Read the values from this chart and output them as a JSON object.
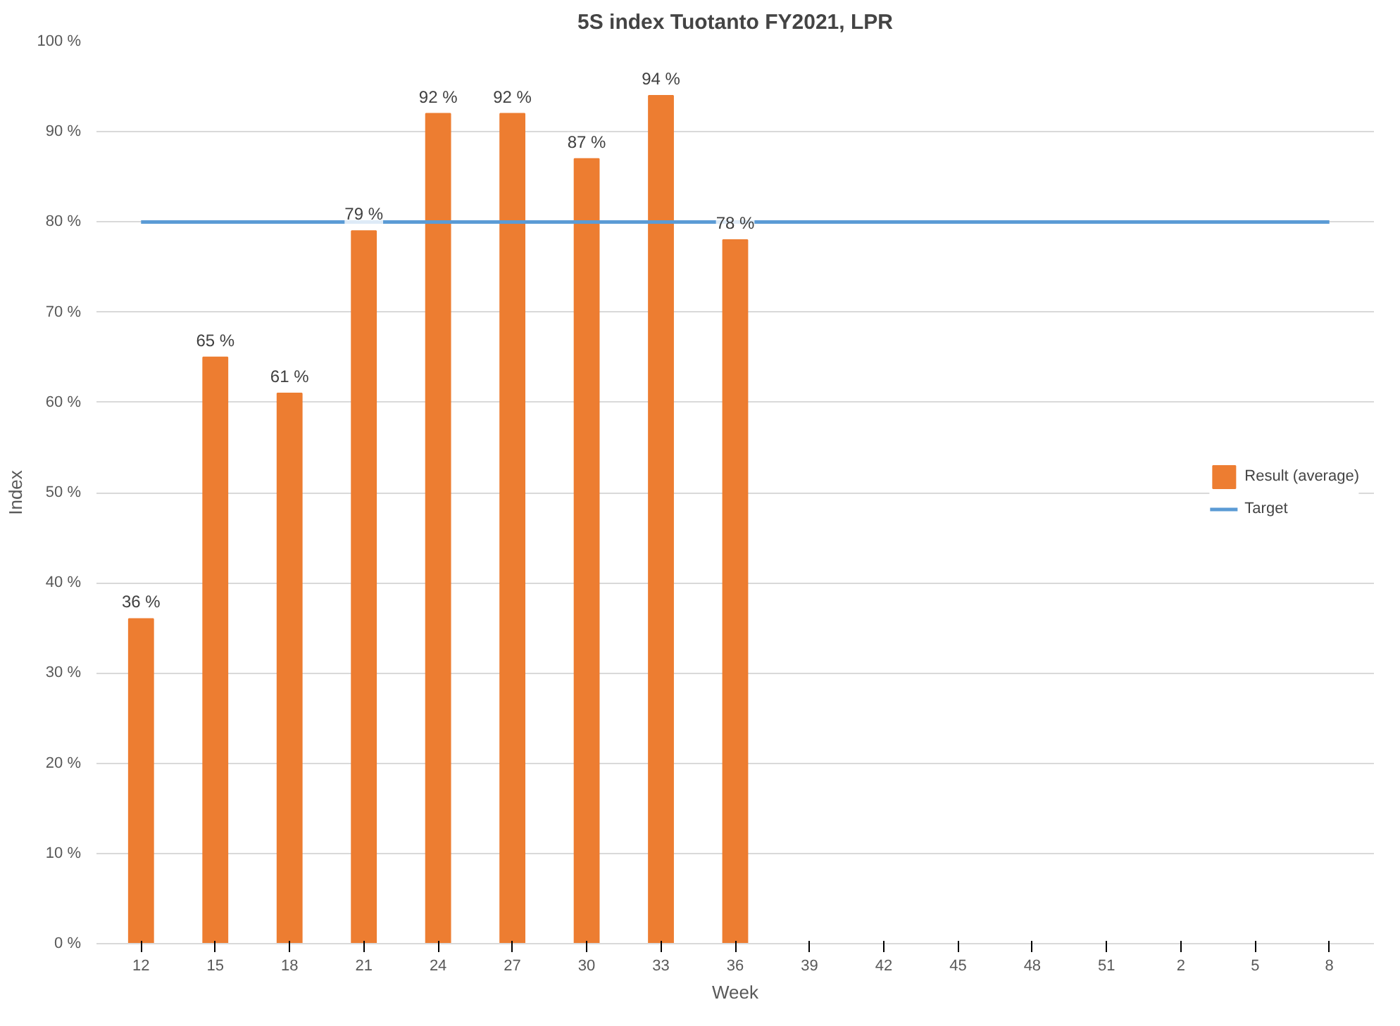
{
  "chart_data": {
    "type": "bar",
    "title": "5S index Tuotanto FY2021, LPR",
    "xlabel": "Week",
    "ylabel": "Index",
    "categories": [
      "12",
      "15",
      "18",
      "21",
      "24",
      "27",
      "30",
      "33",
      "36",
      "39",
      "42",
      "45",
      "48",
      "51",
      "2",
      "5",
      "8"
    ],
    "series": [
      {
        "name": "Result (average)",
        "color": "#ed7d31",
        "values": [
          36,
          65,
          61,
          79,
          92,
          92,
          87,
          94,
          78,
          null,
          null,
          null,
          null,
          null,
          null,
          null,
          null
        ],
        "value_labels": [
          "36 %",
          "65 %",
          "61 %",
          "79 %",
          "92 %",
          "92 %",
          "87 %",
          "94 %",
          "78 %",
          null,
          null,
          null,
          null,
          null,
          null,
          null,
          null
        ]
      },
      {
        "name": "Target",
        "type": "line",
        "color": "#5b9bd5",
        "values": [
          80,
          80,
          80,
          80,
          80,
          80,
          80,
          80,
          80,
          80,
          80,
          80,
          80,
          80,
          80,
          80,
          80
        ]
      }
    ],
    "ylim": [
      0,
      100
    ],
    "yticks": [
      {
        "value": 0,
        "label": "0 %"
      },
      {
        "value": 10,
        "label": "10 %"
      },
      {
        "value": 20,
        "label": "20 %"
      },
      {
        "value": 30,
        "label": "30 %"
      },
      {
        "value": 40,
        "label": "40 %"
      },
      {
        "value": 50,
        "label": "50 %"
      },
      {
        "value": 60,
        "label": "60 %"
      },
      {
        "value": 70,
        "label": "70 %"
      },
      {
        "value": 80,
        "label": "80 %"
      },
      {
        "value": 90,
        "label": "90 %"
      },
      {
        "value": 100,
        "label": "100 %"
      }
    ],
    "grid": "y",
    "legend": "right"
  }
}
